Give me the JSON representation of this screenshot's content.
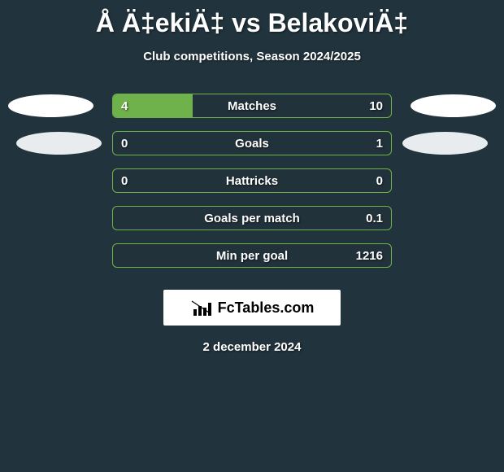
{
  "header": {
    "title": "Å Ä‡ekiÄ‡ vs BelakoviÄ‡",
    "subtitle": "Club competitions, Season 2024/2025"
  },
  "comparison": {
    "bar_border_color": "#6fb24b",
    "bar_fill_color": "#6fb24b",
    "background_color": "#21333c",
    "text_color": "#ffffff",
    "rows": [
      {
        "label": "Matches",
        "left_value": "4",
        "right_value": "10",
        "fill_percent": 28.6,
        "show_left_ellipse": true,
        "show_right_ellipse": true,
        "ellipse_shadow": false
      },
      {
        "label": "Goals",
        "left_value": "0",
        "right_value": "1",
        "fill_percent": 0,
        "show_left_ellipse": true,
        "show_right_ellipse": true,
        "ellipse_shadow": true
      },
      {
        "label": "Hattricks",
        "left_value": "0",
        "right_value": "0",
        "fill_percent": 0,
        "show_left_ellipse": false,
        "show_right_ellipse": false,
        "ellipse_shadow": false
      },
      {
        "label": "Goals per match",
        "left_value": "",
        "right_value": "0.1",
        "fill_percent": 0,
        "show_left_ellipse": false,
        "show_right_ellipse": false,
        "ellipse_shadow": false
      },
      {
        "label": "Min per goal",
        "left_value": "",
        "right_value": "1216",
        "fill_percent": 0,
        "show_left_ellipse": false,
        "show_right_ellipse": false,
        "ellipse_shadow": false
      }
    ]
  },
  "logo": {
    "text": "FcTables.com",
    "bar_icon_color": "#000000"
  },
  "footer": {
    "date_text": "2 december 2024"
  }
}
